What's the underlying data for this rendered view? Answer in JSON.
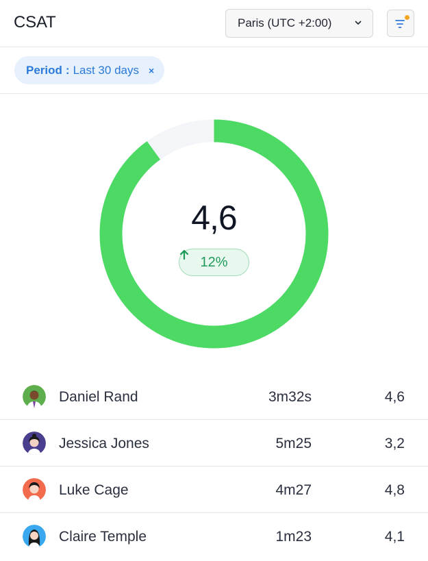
{
  "header": {
    "title": "CSAT",
    "timezone_label": "Paris (UTC +2:00)",
    "filter_icon": "filter-lines-icon",
    "notification_dot_color": "#f5a524"
  },
  "filters": {
    "chip_key": "Period",
    "chip_separator": ":",
    "chip_value": "Last 30 days",
    "chip_close": "×"
  },
  "gauge": {
    "score": "4,6",
    "fraction": 0.9,
    "trend_label": "12%",
    "trend_icon": "arrow-up-icon",
    "fill_color": "#4cd964",
    "track_color": "#f4f5f9"
  },
  "agents": [
    {
      "name": "Daniel Rand",
      "time": "3m32s",
      "score": "4,6",
      "avatar_color": "#5fae4d"
    },
    {
      "name": "Jessica Jones",
      "time": "5m25",
      "score": "3,2",
      "avatar_color": "#4a3f8f"
    },
    {
      "name": "Luke Cage",
      "time": "4m27",
      "score": "4,8",
      "avatar_color": "#f26b4c"
    },
    {
      "name": "Claire Temple",
      "time": "1m23",
      "score": "4,1",
      "avatar_color": "#39a8ef"
    }
  ]
}
